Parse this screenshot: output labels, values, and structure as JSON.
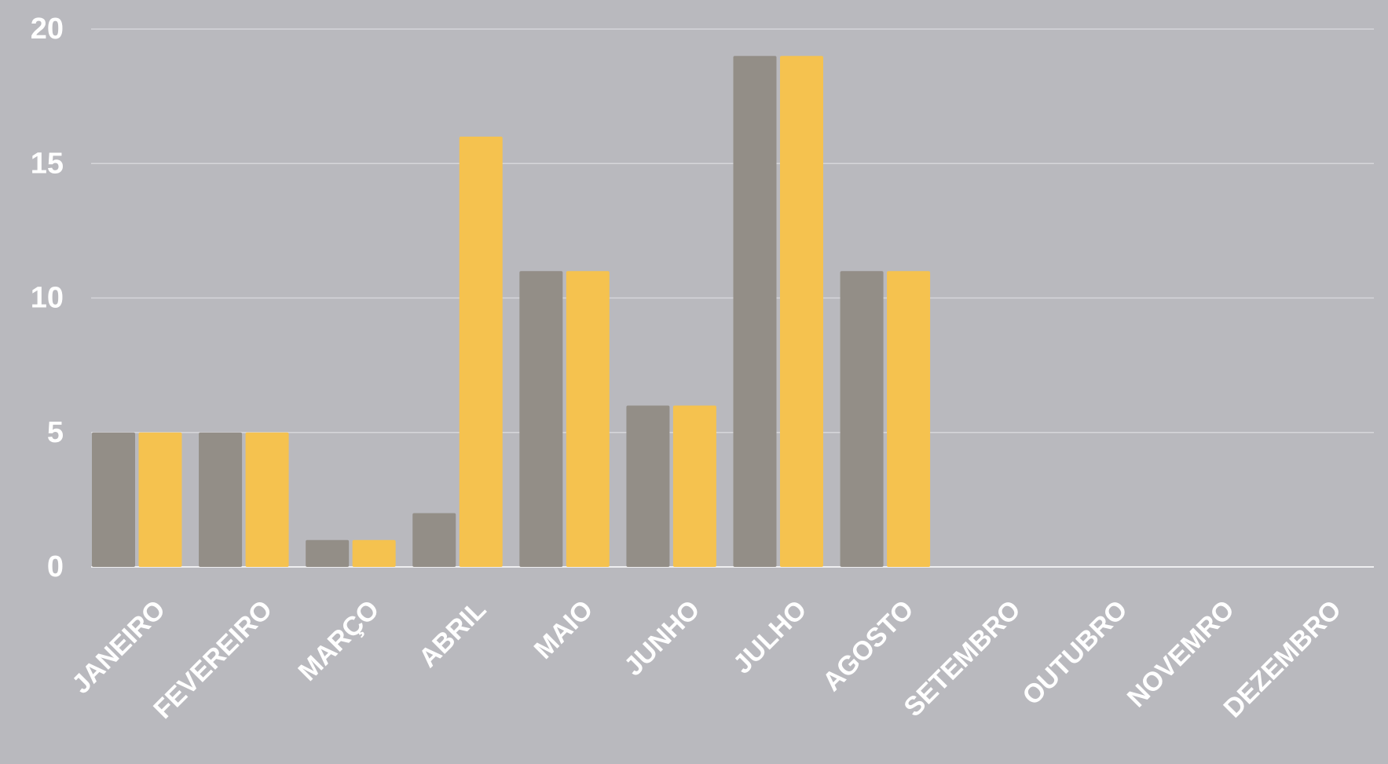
{
  "chart_data": {
    "type": "bar",
    "categories": [
      "JANEIRO",
      "FEVEREIRO",
      "MARÇO",
      "ABRIL",
      "MAIO",
      "JUNHO",
      "JULHO",
      "AGOSTO",
      "SETEMBRO",
      "OUTUBRO",
      "NOVEMRO",
      "DEZEMBRO"
    ],
    "series": [
      {
        "color": "#938e87",
        "values": [
          5,
          5,
          1,
          2,
          11,
          6,
          19,
          11,
          null,
          null,
          null,
          null
        ]
      },
      {
        "color": "#f5c24f",
        "values": [
          5,
          5,
          1,
          16,
          11,
          6,
          19,
          11,
          null,
          null,
          null,
          null
        ]
      }
    ],
    "ylim": [
      0,
      20
    ],
    "yticks": [
      0,
      5,
      10,
      15,
      20
    ],
    "grid": true
  }
}
